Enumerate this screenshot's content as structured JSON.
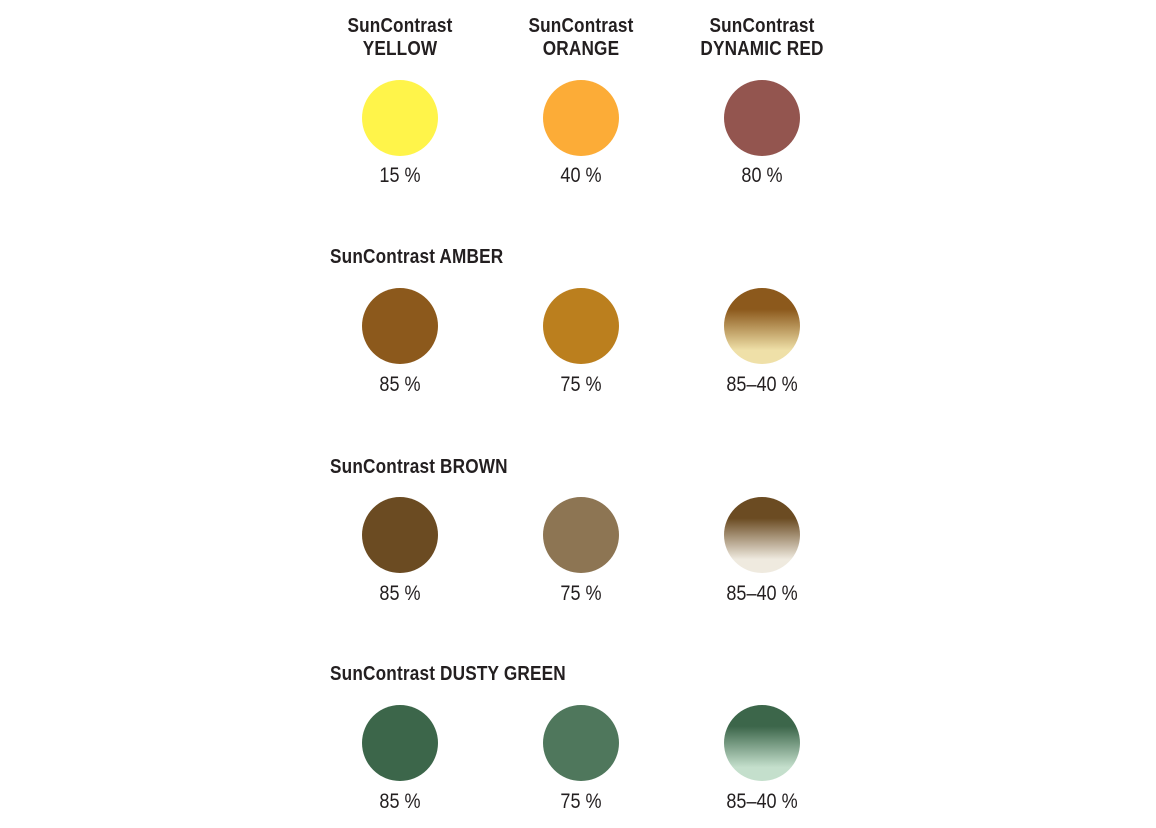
{
  "columns": [
    {
      "line1": "SunContrast",
      "line2": "YELLOW"
    },
    {
      "line1": "SunContrast",
      "line2": "ORANGE"
    },
    {
      "line1": "SunContrast",
      "line2": "DYNAMIC RED"
    }
  ],
  "top_row": [
    {
      "value": "15 %",
      "color": "#fff44a"
    },
    {
      "value": "40 %",
      "color": "#fcac37"
    },
    {
      "value": "80 %",
      "color": "#93554f"
    }
  ],
  "groups": [
    {
      "title": "SunContrast AMBER",
      "swatches": [
        {
          "value": "85 %",
          "color": "#8c591c",
          "gradient": false
        },
        {
          "value": "75 %",
          "color": "#bb7f1e",
          "gradient": false
        },
        {
          "value": "85–40 %",
          "color": "#8c591c",
          "color_end": "#efe0a8",
          "gradient": true
        }
      ]
    },
    {
      "title": "SunContrast BROWN",
      "swatches": [
        {
          "value": "85 %",
          "color": "#6b4b22",
          "gradient": false
        },
        {
          "value": "75 %",
          "color": "#8d7553",
          "gradient": false
        },
        {
          "value": "85–40 %",
          "color": "#6b4b22",
          "color_end": "#efeadf",
          "gradient": true
        }
      ]
    },
    {
      "title": "SunContrast DUSTY GREEN",
      "swatches": [
        {
          "value": "85 %",
          "color": "#3c664a",
          "gradient": false
        },
        {
          "value": "75 %",
          "color": "#4f775c",
          "gradient": false
        },
        {
          "value": "85–40 %",
          "color": "#3c664a",
          "color_end": "#c4dfcc",
          "gradient": true
        }
      ]
    }
  ]
}
